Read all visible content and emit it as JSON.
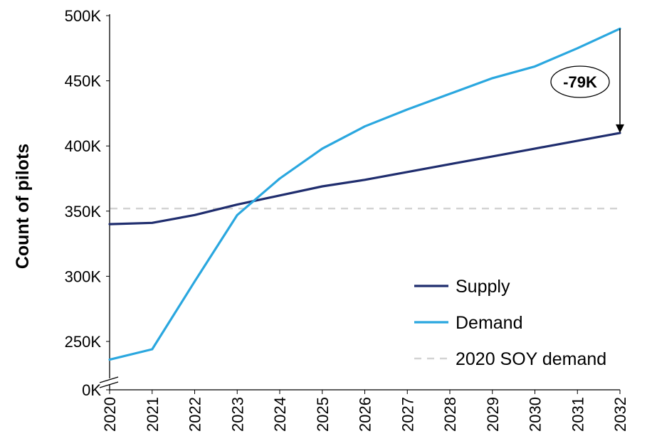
{
  "chart_data": {
    "type": "line",
    "ylabel": "Count of pilots",
    "xlabel": "",
    "x": [
      "2020",
      "2021",
      "2022",
      "2023",
      "2024",
      "2025",
      "2026",
      "2027",
      "2028",
      "2029",
      "2030",
      "2031",
      "2032"
    ],
    "y_ticks": [
      {
        "value": 0,
        "label": "0K"
      },
      {
        "value": 250000,
        "label": "250K"
      },
      {
        "value": 300000,
        "label": "300K"
      },
      {
        "value": 350000,
        "label": "350K"
      },
      {
        "value": 400000,
        "label": "400K"
      },
      {
        "value": 450000,
        "label": "450K"
      },
      {
        "value": 500000,
        "label": "500K"
      }
    ],
    "axis_break": true,
    "ylim": [
      236000,
      500000
    ],
    "series": [
      {
        "name": "Supply",
        "color": "#1f2d6e",
        "values": [
          340000,
          341000,
          347000,
          355000,
          362000,
          369000,
          374000,
          380000,
          386000,
          392000,
          398000,
          404000,
          410000
        ]
      },
      {
        "name": "Demand",
        "color": "#2aa7df",
        "values": [
          236000,
          244000,
          296000,
          347000,
          375000,
          398000,
          415000,
          428000,
          440000,
          452000,
          461000,
          475000,
          490000
        ]
      }
    ],
    "reference_line": {
      "name": "2020 SOY demand",
      "value": 352000,
      "color": "#d3d3d3",
      "style": "dashed"
    },
    "annotation": {
      "text": "-79K",
      "x": "2032",
      "from": 490000,
      "to": 410000
    },
    "legend": {
      "position": "bottom-right"
    },
    "grid": false
  }
}
